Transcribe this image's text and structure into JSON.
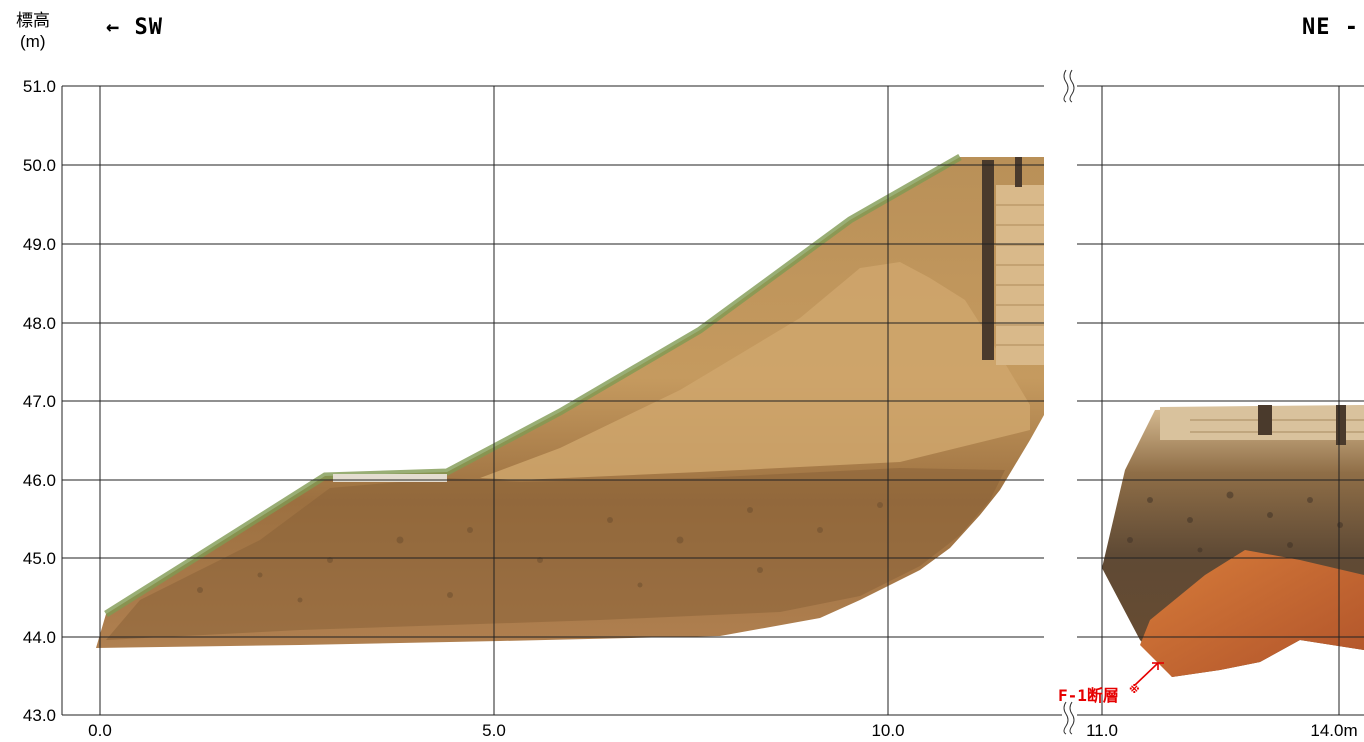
{
  "header": {
    "y_axis_label": "標高",
    "y_axis_unit": "(m)",
    "direction_left": "← SW",
    "direction_right": "NE -"
  },
  "axis": {
    "y_ticks": [
      "51.0",
      "50.0",
      "49.0",
      "48.0",
      "47.0",
      "46.0",
      "45.0",
      "44.0",
      "43.0"
    ],
    "x_ticks_left": [
      "0.0",
      "5.0",
      "10.0"
    ],
    "x_ticks_right": [
      "11.0",
      "14.0m"
    ]
  },
  "annotation": {
    "fault_label": "F-1断層",
    "fault_mark": "※",
    "color": "#e60000"
  },
  "colors": {
    "grid": "#222222",
    "soil_upper": "#c9a068",
    "soil_lower": "#a3733f",
    "gravel": "#7d5a34",
    "fault_zone": "#c4612b",
    "vegetation": "#7f9a52",
    "timber": "#d9b98a"
  }
}
